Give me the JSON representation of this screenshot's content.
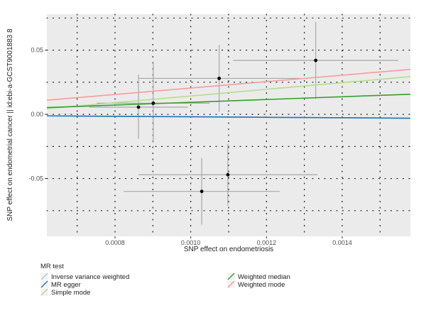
{
  "chart_data": {
    "type": "scatter",
    "xlabel": "SNP effect on endometriosis",
    "ylabel": "SNP effect on endometrial cancer || id:ebi-a-GCST9001883 8",
    "xlim": [
      0.00062,
      0.00158
    ],
    "ylim": [
      -0.095,
      0.078
    ],
    "x_ticks": [
      0.0008,
      0.001,
      0.0012,
      0.0014
    ],
    "x_tick_labels": [
      "0.0008",
      "0.0010",
      "0.0012",
      "0.0014"
    ],
    "y_ticks": [
      0.05,
      0.0,
      -0.05
    ],
    "y_tick_labels": [
      "0.05",
      "0.00",
      "-0.05"
    ],
    "grid": true,
    "points": [
      {
        "x": 0.000862,
        "y": 0.0056,
        "xerr_lo": 0.000732,
        "xerr_hi": 0.000992,
        "yerr_lo": -0.019,
        "yerr_hi": 0.031
      },
      {
        "x": 0.000901,
        "y": 0.0087,
        "xerr_lo": 0.000752,
        "xerr_hi": 0.00105,
        "yerr_lo": -0.022,
        "yerr_hi": 0.04
      },
      {
        "x": 0.001075,
        "y": 0.028,
        "xerr_lo": 0.000861,
        "xerr_hi": 0.001289,
        "yerr_lo": 0.002,
        "yerr_hi": 0.054
      },
      {
        "x": 0.00133,
        "y": 0.042,
        "xerr_lo": 0.001112,
        "xerr_hi": 0.001548,
        "yerr_lo": 0.012,
        "yerr_hi": 0.072
      },
      {
        "x": 0.001098,
        "y": -0.047,
        "xerr_lo": 0.000862,
        "xerr_hi": 0.001335,
        "yerr_lo": -0.071,
        "yerr_hi": -0.023
      },
      {
        "x": 0.001029,
        "y": -0.06,
        "xerr_lo": 0.000823,
        "xerr_hi": 0.001235,
        "yerr_lo": -0.086,
        "yerr_hi": -0.034
      }
    ],
    "series": [
      {
        "name": "Inverse variance weighted",
        "color": "#a6cee3",
        "slope": -1.9,
        "intercept": 0.0
      },
      {
        "name": "MR egger",
        "color": "#1f78b4",
        "slope": -1.9,
        "intercept": 0.0
      },
      {
        "name": "Simple mode",
        "color": "#b2df8a",
        "slope": 26.0,
        "intercept": -0.0117
      },
      {
        "name": "Weighted median",
        "color": "#33a02c",
        "slope": 10.8,
        "intercept": -0.0014
      },
      {
        "name": "Weighted mode",
        "color": "#fb9a99",
        "slope": 25.0,
        "intercept": -0.0045
      }
    ],
    "legend": {
      "title": "MR test",
      "position": "bottom"
    }
  }
}
